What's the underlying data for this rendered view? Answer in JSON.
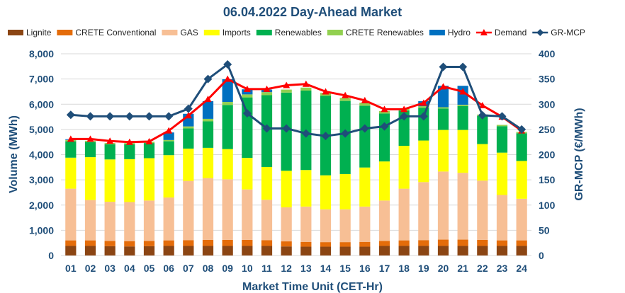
{
  "chart_data": {
    "type": "bar",
    "title": "06.04.2022  Day-Ahead Market",
    "xlabel": "Market Time Unit (CET-Hr)",
    "ylabel": "Volume (MWh)",
    "y2label": "GR-MCP (€/MWh)",
    "ylim": [
      0,
      8000
    ],
    "y2lim": [
      0,
      400
    ],
    "yticks": [
      "0",
      "1,000",
      "2,000",
      "3,000",
      "4,000",
      "5,000",
      "6,000",
      "7,000",
      "8,000"
    ],
    "y2ticks": [
      "0",
      "50",
      "100",
      "150",
      "200",
      "250",
      "300",
      "350",
      "400"
    ],
    "categories": [
      "01",
      "02",
      "03",
      "04",
      "05",
      "06",
      "07",
      "08",
      "09",
      "10",
      "11",
      "12",
      "13",
      "14",
      "15",
      "16",
      "17",
      "18",
      "19",
      "20",
      "21",
      "22",
      "23",
      "24"
    ],
    "stacked_series": [
      {
        "name": "Lignite",
        "color": "#8b4513",
        "values": [
          380,
          380,
          370,
          360,
          370,
          380,
          380,
          380,
          380,
          380,
          380,
          360,
          350,
          350,
          350,
          350,
          380,
          380,
          380,
          380,
          380,
          380,
          380,
          380
        ]
      },
      {
        "name": "CRETE Conventional",
        "color": "#e46c0a",
        "values": [
          220,
          220,
          210,
          210,
          210,
          220,
          230,
          240,
          240,
          240,
          230,
          200,
          190,
          180,
          180,
          190,
          200,
          220,
          230,
          250,
          250,
          240,
          220,
          220
        ]
      },
      {
        "name": "GAS",
        "color": "#f7bf95",
        "values": [
          2050,
          1600,
          1550,
          1550,
          1600,
          1700,
          2350,
          2450,
          2400,
          2000,
          1600,
          1350,
          1400,
          1300,
          1300,
          1400,
          1600,
          2050,
          2300,
          2700,
          2650,
          2350,
          1800,
          1650
        ]
      },
      {
        "name": "Imports",
        "color": "#ffff00",
        "values": [
          1230,
          1700,
          1680,
          1700,
          1680,
          1680,
          1280,
          1200,
          1200,
          1250,
          1300,
          1450,
          1450,
          1350,
          1400,
          1550,
          1550,
          1700,
          1650,
          1650,
          1700,
          1450,
          1680,
          1500
        ]
      },
      {
        "name": "Renewables",
        "color": "#00b050",
        "values": [
          650,
          600,
          600,
          590,
          600,
          550,
          800,
          1050,
          1750,
          2400,
          2850,
          3100,
          3150,
          3150,
          2900,
          2450,
          1900,
          1400,
          1300,
          850,
          950,
          1120,
          1050,
          1100
        ]
      },
      {
        "name": "CRETE Renewables",
        "color": "#92d050",
        "values": [
          50,
          50,
          50,
          50,
          50,
          50,
          80,
          100,
          120,
          120,
          120,
          120,
          120,
          120,
          120,
          120,
          100,
          80,
          60,
          50,
          50,
          50,
          50,
          50
        ]
      },
      {
        "name": "Hydro",
        "color": "#0070c0",
        "values": [
          30,
          0,
          0,
          0,
          0,
          300,
          500,
          700,
          900,
          200,
          100,
          0,
          0,
          0,
          0,
          0,
          0,
          0,
          200,
          850,
          750,
          0,
          0,
          0
        ]
      }
    ],
    "line_series": [
      {
        "name": "Demand",
        "axis": "left",
        "color": "#ff0000",
        "marker": "triangle",
        "values": [
          4620,
          4620,
          4540,
          4500,
          4520,
          4950,
          5550,
          6200,
          7000,
          6600,
          6600,
          6750,
          6800,
          6500,
          6350,
          6150,
          5800,
          5800,
          6050,
          6700,
          6500,
          5950,
          5500,
          4950
        ]
      },
      {
        "name": "GR-MCP",
        "axis": "right",
        "color": "#1f4e79",
        "marker": "diamond",
        "values": [
          279,
          276,
          276,
          276,
          276,
          276,
          291,
          350,
          379,
          282,
          252,
          252,
          242,
          237,
          242,
          252,
          256,
          276,
          276,
          374,
          374,
          278,
          276,
          250
        ]
      }
    ]
  }
}
